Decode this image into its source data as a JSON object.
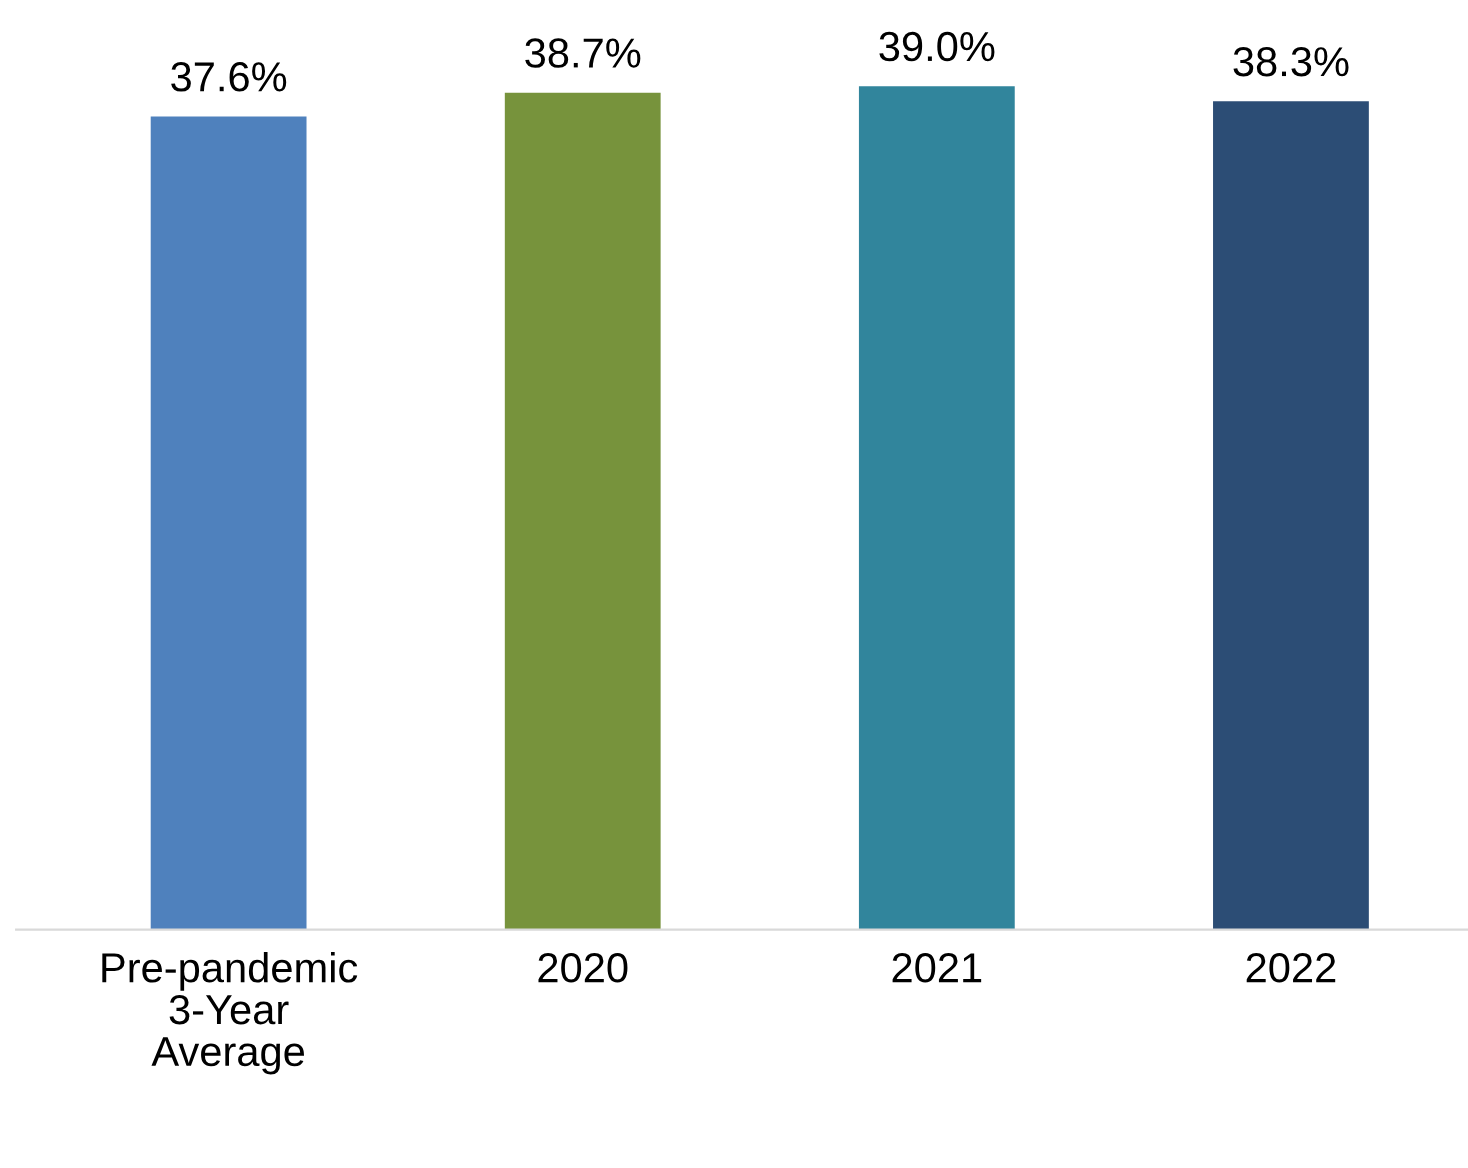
{
  "chart_data": {
    "type": "bar",
    "categories": [
      "Pre-pandemic\n3-Year\nAverage",
      "2020",
      "2021",
      "2022"
    ],
    "values": [
      37.6,
      38.7,
      39.0,
      38.3
    ],
    "colors": [
      "#4f81bd",
      "#77933c",
      "#31859c",
      "#2c4d75"
    ],
    "value_labels": [
      "37.6%",
      "38.7%",
      "39.0%",
      "38.3%"
    ],
    "grid": false,
    "legend": false
  }
}
